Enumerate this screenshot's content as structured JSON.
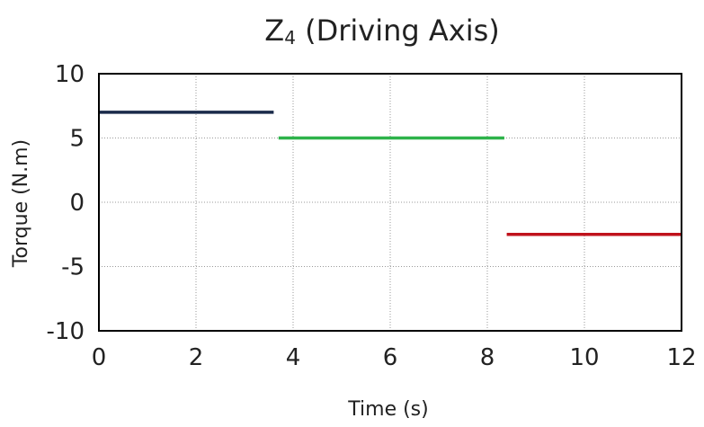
{
  "chart_data": {
    "type": "line",
    "title_main": "Z",
    "title_sub": "4",
    "title_rest": " (Driving Axis)",
    "xlabel": "Time (s)",
    "ylabel": "Torque (N.m)",
    "xlim": [
      0,
      12
    ],
    "ylim": [
      -10,
      10
    ],
    "xticks": [
      "0",
      "2",
      "4",
      "6",
      "8",
      "10",
      "12"
    ],
    "yticks": [
      "10",
      "5",
      "0",
      "-5",
      "-10"
    ],
    "grid": true,
    "legend": "none",
    "series": [
      {
        "x": [
          0,
          3.6
        ],
        "y": [
          7,
          7
        ],
        "color": "#1a2a4a"
      },
      {
        "x": [
          3.7,
          8.35
        ],
        "y": [
          5,
          5
        ],
        "color": "#2db34a"
      },
      {
        "x": [
          8.4,
          12
        ],
        "y": [
          -2.5,
          -2.5
        ],
        "color": "#c0121c"
      }
    ]
  }
}
